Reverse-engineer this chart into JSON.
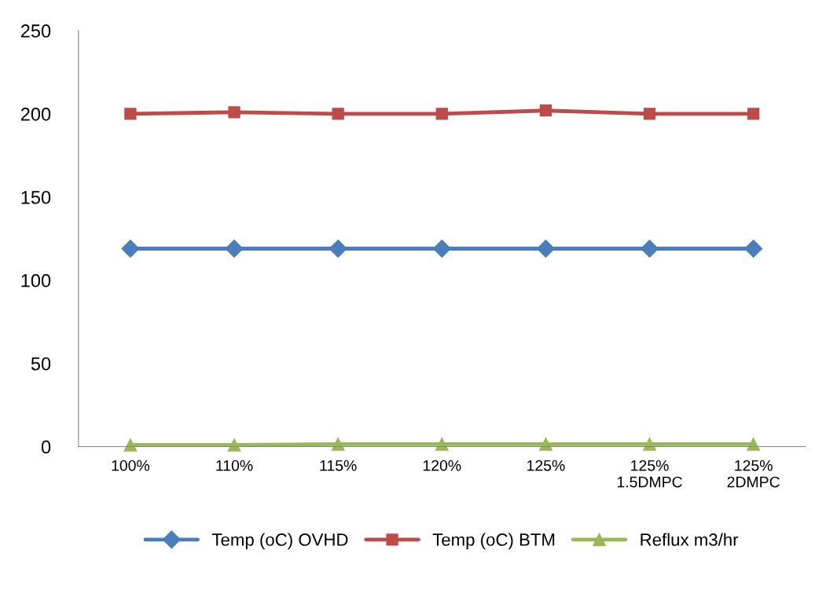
{
  "chart_data": {
    "type": "line",
    "categories": [
      "100%",
      "110%",
      "115%",
      "120%",
      "125%",
      "125%\n1.5DMPC",
      "125%\n2DMPC"
    ],
    "series": [
      {
        "name": "Temp (oC) OVHD",
        "color": "#4a7ebb",
        "marker": "diamond",
        "values": [
          119,
          119,
          119,
          119,
          119,
          119,
          119
        ]
      },
      {
        "name": "Temp (oC) BTM",
        "color": "#be4b48",
        "marker": "square",
        "values": [
          200,
          201,
          200,
          200,
          202,
          200,
          200
        ]
      },
      {
        "name": "Reflux m3/hr",
        "color": "#98b954",
        "marker": "triangle",
        "values": [
          1,
          1,
          1.5,
          1.5,
          1.5,
          1.5,
          1.5
        ]
      }
    ],
    "ylim": [
      0,
      250
    ],
    "yticks": [
      0,
      50,
      100,
      150,
      200,
      250
    ],
    "grid": false,
    "legend": "bottom",
    "line_style": "solid"
  }
}
